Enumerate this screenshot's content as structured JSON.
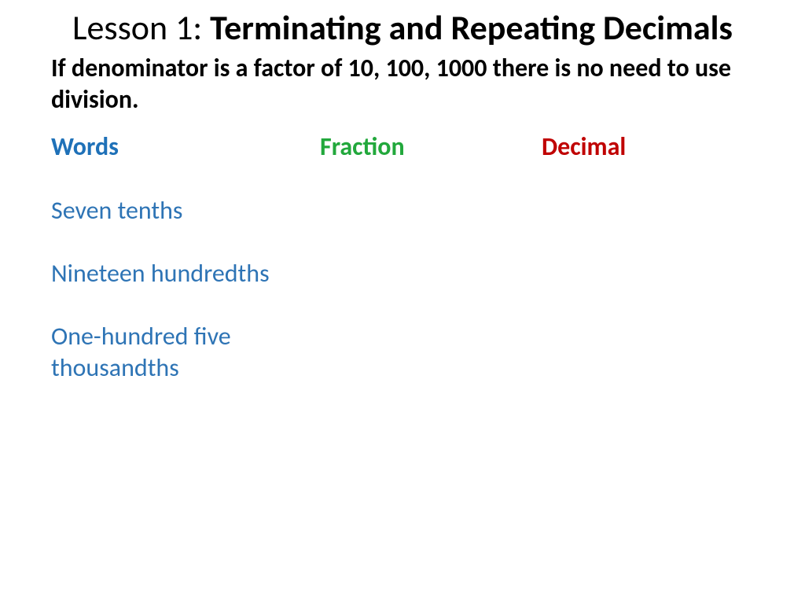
{
  "title": {
    "prefix": "Lesson 1: ",
    "main": "Terminating and Repeating Decimals"
  },
  "subtitle": "If denominator is a factor of 10, 100, 1000 there is no need to use division.",
  "columns": {
    "words": {
      "label": "Words",
      "color": "#1f71b8"
    },
    "fraction": {
      "label": "Fraction",
      "color": "#22a83c"
    },
    "decimal": {
      "label": "Decimal",
      "color": "#c00000"
    }
  },
  "items_color": "#2e74b5",
  "items": [
    {
      "lines": [
        "Seven tenths"
      ]
    },
    {
      "lines": [
        "Nineteen hundredths"
      ]
    },
    {
      "lines": [
        "One-hundred five",
        "thousandths"
      ]
    }
  ],
  "background_color": "#ffffff",
  "title_color": "#000000",
  "subtitle_color": "#000000",
  "fontsize_title": 44,
  "fontsize_body": 32
}
